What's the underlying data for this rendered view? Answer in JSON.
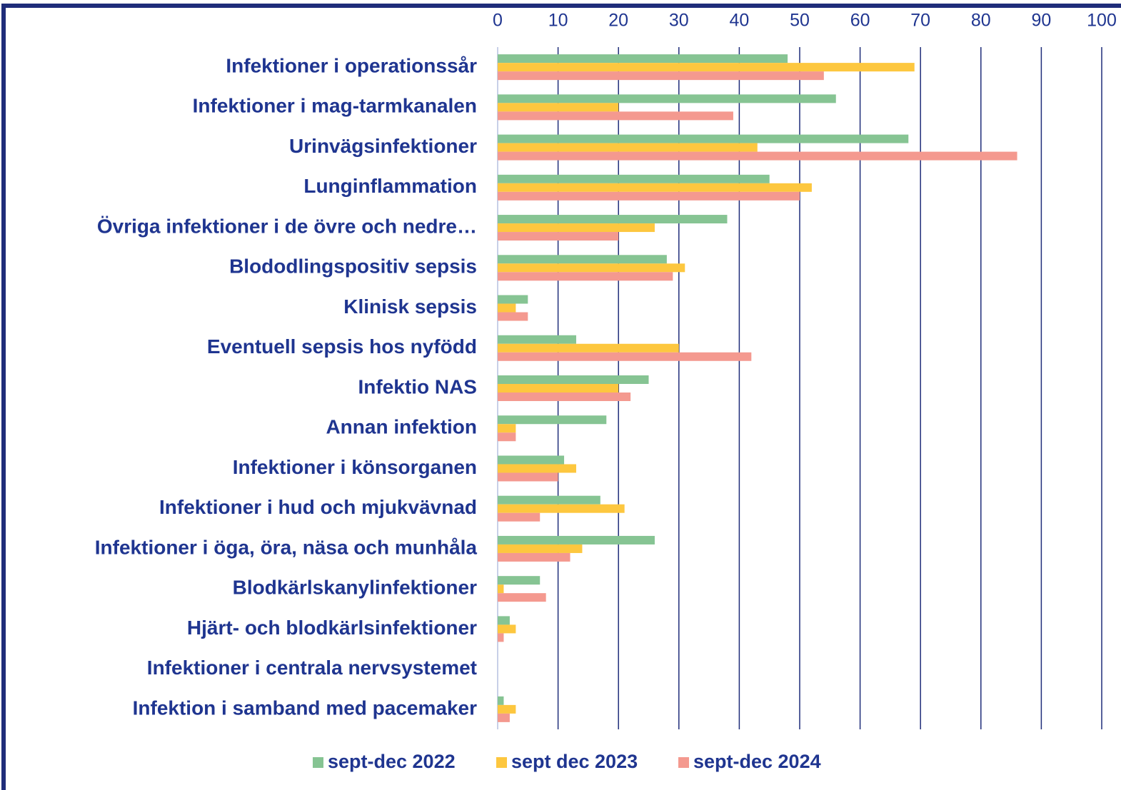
{
  "chart_data": {
    "type": "hbar",
    "categories": [
      "Infektioner i operationssår",
      "Infektioner i mag-tarmkanalen",
      "Urinvägsinfektioner",
      "Lunginflammation",
      "Övriga infektioner i de övre och nedre…",
      "Blododlingspositiv sepsis",
      "Klinisk sepsis",
      "Eventuell sepsis hos nyfödd",
      "Infektio NAS",
      "Annan infektion",
      "Infektioner i könsorganen",
      "Infektioner i hud och mjukvävnad",
      "Infektioner i öga, öra, näsa och munhåla",
      "Blodkärlskanylinfektioner",
      "Hjärt- och blodkärlsinfektioner",
      "Infektioner i centrala nervsystemet",
      "Infektion i samband med pacemaker"
    ],
    "series": [
      {
        "name": "sept-dec 2022",
        "color": "#86c493",
        "values": [
          48,
          56,
          68,
          45,
          38,
          28,
          5,
          13,
          25,
          18,
          11,
          17,
          26,
          7,
          2,
          0,
          1
        ]
      },
      {
        "name": "sept dec 2023",
        "color": "#fdc73f",
        "values": [
          69,
          20,
          43,
          52,
          26,
          31,
          3,
          30,
          20,
          3,
          13,
          21,
          14,
          1,
          3,
          0,
          3
        ]
      },
      {
        "name": "sept-dec 2024",
        "color": "#f4998f",
        "values": [
          54,
          39,
          86,
          50,
          20,
          29,
          5,
          42,
          22,
          3,
          10,
          7,
          12,
          8,
          1,
          0,
          2
        ]
      }
    ],
    "xlim": [
      0,
      100
    ],
    "xticks": [
      0,
      10,
      20,
      30,
      40,
      50,
      60,
      70,
      80,
      90,
      100
    ],
    "grid": true
  }
}
